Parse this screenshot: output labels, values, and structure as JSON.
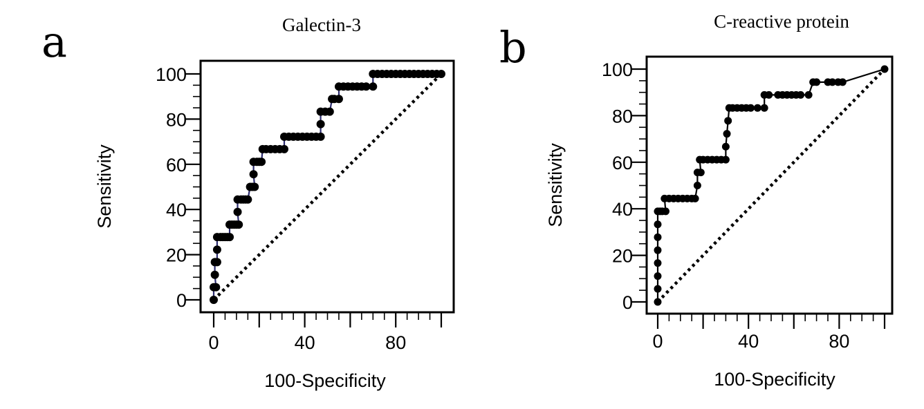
{
  "chart_data": [
    {
      "type": "line",
      "panel": "a",
      "title": "Galectin-3",
      "xlabel": "100-Specificity",
      "ylabel": "Sensitivity",
      "xlim": [
        0,
        100
      ],
      "ylim": [
        0,
        100
      ],
      "x_ticks": [
        0,
        40,
        80
      ],
      "x_tick_labels": [
        "0",
        "40",
        "80"
      ],
      "y_ticks": [
        0,
        20,
        40,
        60,
        80,
        100
      ],
      "y_tick_labels": [
        "0",
        "20",
        "40",
        "60",
        "80",
        "100"
      ],
      "grid": false,
      "line_color": "#2b2b6e",
      "marker_color": "#000000",
      "series": [
        {
          "name": "Galectin-3 ROC",
          "x": [
            0,
            0,
            1,
            0.5,
            0.5,
            1.5,
            1.5,
            1.5,
            3,
            4,
            5,
            6,
            7,
            7,
            8,
            9,
            10,
            11,
            10.5,
            10.5,
            12,
            13,
            14,
            15,
            16,
            17,
            18,
            17.5,
            17.5,
            19,
            20,
            21,
            21.5,
            23,
            25,
            27,
            29,
            31,
            31,
            33,
            35,
            37,
            39,
            41,
            43,
            45,
            47,
            47,
            47,
            49,
            51,
            52,
            53,
            55,
            55,
            57,
            59,
            61,
            63,
            65,
            67,
            70,
            70,
            72,
            74,
            76,
            78,
            80,
            82,
            84,
            86,
            88,
            90,
            92,
            94,
            96,
            98,
            100
          ],
          "y": [
            0,
            5.6,
            5.6,
            11.1,
            16.7,
            16.7,
            22.2,
            27.8,
            27.8,
            27.8,
            27.8,
            27.8,
            27.8,
            33.3,
            33.3,
            33.3,
            33.3,
            33.3,
            38.9,
            44.4,
            44.4,
            44.4,
            44.4,
            44.4,
            50,
            50,
            50,
            55.6,
            61.1,
            61.1,
            61.1,
            61.1,
            66.7,
            66.7,
            66.7,
            66.7,
            66.7,
            66.7,
            72.2,
            72.2,
            72.2,
            72.2,
            72.2,
            72.2,
            72.2,
            72.2,
            72.2,
            77.8,
            83.3,
            83.3,
            83.3,
            88.9,
            88.9,
            88.9,
            94.4,
            94.4,
            94.4,
            94.4,
            94.4,
            94.4,
            94.4,
            94.4,
            100,
            100,
            100,
            100,
            100,
            100,
            100,
            100,
            100,
            100,
            100,
            100,
            100,
            100,
            100,
            100
          ]
        },
        {
          "name": "Reference line",
          "x": [
            0,
            100
          ],
          "y": [
            0,
            100
          ]
        }
      ]
    },
    {
      "type": "line",
      "panel": "b",
      "title": "C-reactive protein",
      "xlabel": "100-Specificity",
      "ylabel": "Sensitivity",
      "xlim": [
        0,
        100
      ],
      "ylim": [
        0,
        100
      ],
      "x_ticks": [
        0,
        40,
        80
      ],
      "x_tick_labels": [
        "0",
        "40",
        "80"
      ],
      "y_ticks": [
        0,
        20,
        40,
        60,
        80,
        100
      ],
      "y_tick_labels": [
        "0",
        "20",
        "40",
        "60",
        "80",
        "100"
      ],
      "grid": false,
      "line_color": "#000000",
      "marker_color": "#000000",
      "series": [
        {
          "name": "C-reactive protein ROC",
          "x": [
            0,
            0,
            0,
            0,
            0,
            0,
            0,
            0,
            1,
            2,
            3.5,
            3,
            5,
            7,
            9,
            11,
            13,
            15,
            16.5,
            17.5,
            17.5,
            19,
            18.5,
            20,
            22,
            24,
            26,
            28,
            30,
            30,
            30.5,
            31,
            31.5,
            33,
            35,
            37,
            39,
            41,
            44,
            47,
            47,
            49,
            53,
            55,
            57,
            59,
            61,
            63,
            66.5,
            68.5,
            70,
            75,
            77,
            79.5,
            81.5,
            100
          ],
          "y": [
            0,
            5.6,
            11.1,
            16.7,
            22.2,
            27.8,
            33.3,
            38.9,
            38.9,
            38.9,
            38.9,
            44.4,
            44.4,
            44.4,
            44.4,
            44.4,
            44.4,
            44.4,
            44.4,
            50,
            55.6,
            55.6,
            61.1,
            61.1,
            61.1,
            61.1,
            61.1,
            61.1,
            61.1,
            66.7,
            72.2,
            77.8,
            83.3,
            83.3,
            83.3,
            83.3,
            83.3,
            83.3,
            83.3,
            83.3,
            88.9,
            88.9,
            88.9,
            88.9,
            88.9,
            88.9,
            88.9,
            88.9,
            88.9,
            94.4,
            94.4,
            94.4,
            94.4,
            94.4,
            94.4,
            100
          ]
        },
        {
          "name": "Reference line",
          "x": [
            0,
            100
          ],
          "y": [
            0,
            100
          ]
        }
      ]
    }
  ]
}
